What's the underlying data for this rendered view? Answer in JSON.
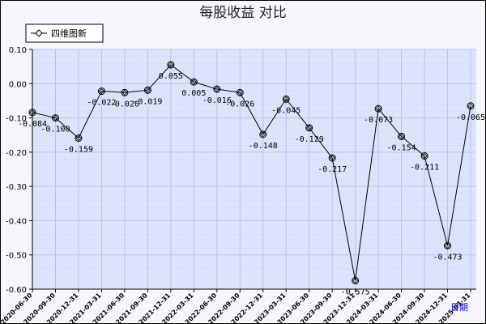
{
  "chart_data": {
    "type": "line",
    "title": "每股收益  对比",
    "xlabel": "日期",
    "ylabel": "",
    "ylim": [
      -0.6,
      0.1
    ],
    "yticks": [
      "0.10",
      "0.00",
      "-0.10",
      "-0.20",
      "-0.30",
      "-0.40",
      "-0.50",
      "-0.60"
    ],
    "ytick_values": [
      0.1,
      0.0,
      -0.1,
      -0.2,
      -0.3,
      -0.4,
      -0.5,
      -0.6
    ],
    "grid": true,
    "legend_position": "top-left",
    "categories": [
      "2020-06-30",
      "2020-09-30",
      "2020-12-31",
      "2021-03-31",
      "2021-06-30",
      "2021-09-30",
      "2021-12-31",
      "2022-03-31",
      "2022-06-30",
      "2022-09-30",
      "2022-12-31",
      "2023-03-31",
      "2023-06-30",
      "2023-09-30",
      "2023-12-31",
      "2024-03-31",
      "2024-06-30",
      "2024-09-30",
      "2024-12-31",
      "2025-03-31"
    ],
    "series": [
      {
        "name": "四维图新",
        "color": "#000000",
        "values": [
          -0.084,
          -0.1,
          -0.159,
          -0.022,
          -0.026,
          -0.019,
          0.055,
          0.005,
          -0.016,
          -0.026,
          -0.148,
          -0.045,
          -0.129,
          -0.217,
          -0.575,
          -0.073,
          -0.154,
          -0.211,
          -0.473,
          -0.065
        ],
        "labels": [
          "-0.084",
          "-0.100",
          "-0.159",
          "-0.022",
          "-0.026",
          "-0.019",
          "0.055",
          "0.005",
          "-0.016",
          "-0.026",
          "-0.148",
          "-0.045",
          "-0.129",
          "-0.217",
          "-0.575",
          "-0.073",
          "-0.154",
          "-0.211",
          "-0.473",
          "-0.065"
        ]
      }
    ],
    "colors": {
      "plot_bg": "#dde3fa",
      "page_bg": "#f6f6fc",
      "grid": "#b8c2ee",
      "line": "#000000",
      "axis_name": "#0000cc"
    }
  }
}
